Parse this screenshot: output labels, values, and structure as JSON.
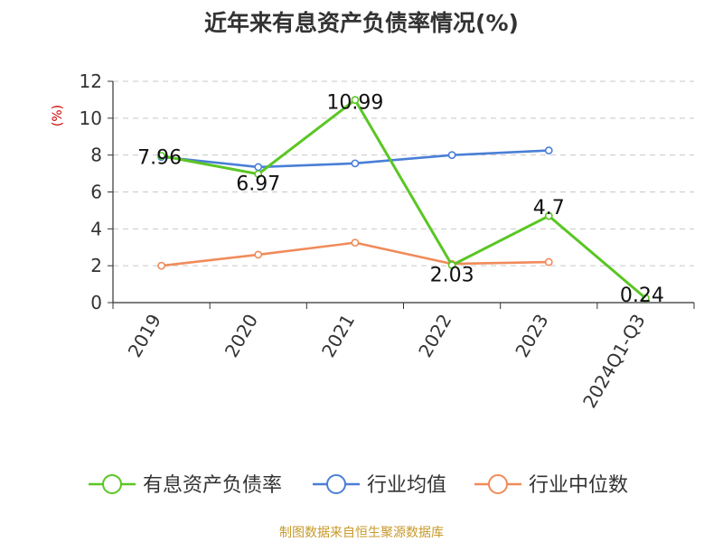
{
  "chart_data": {
    "type": "line",
    "title": "近年来有息资产负债率情况(%)",
    "ylabel": "(%)",
    "ylim": [
      0,
      12
    ],
    "yticks": [
      0,
      2,
      4,
      6,
      8,
      10,
      12
    ],
    "categories": [
      "2019",
      "2020",
      "2021",
      "2022",
      "2023",
      "2024Q1-Q3"
    ],
    "grid": true,
    "legend_position": "bottom",
    "series": [
      {
        "name": "有息资产负债率",
        "color": "#5ac623",
        "values": [
          7.96,
          6.97,
          10.99,
          2.03,
          4.7,
          0.24
        ],
        "labels": [
          "7.96",
          "6.97",
          "10.99",
          "2.03",
          "4.7",
          "0.24"
        ]
      },
      {
        "name": "行业均值",
        "color": "#4a7fd6",
        "values": [
          7.9,
          7.35,
          7.55,
          8.0,
          8.25,
          null
        ]
      },
      {
        "name": "行业中位数",
        "color": "#f08b5a",
        "values": [
          2.0,
          2.6,
          3.25,
          2.1,
          2.2,
          null
        ]
      }
    ]
  },
  "footer": {
    "source": "制图数据来自恒生聚源数据库"
  }
}
